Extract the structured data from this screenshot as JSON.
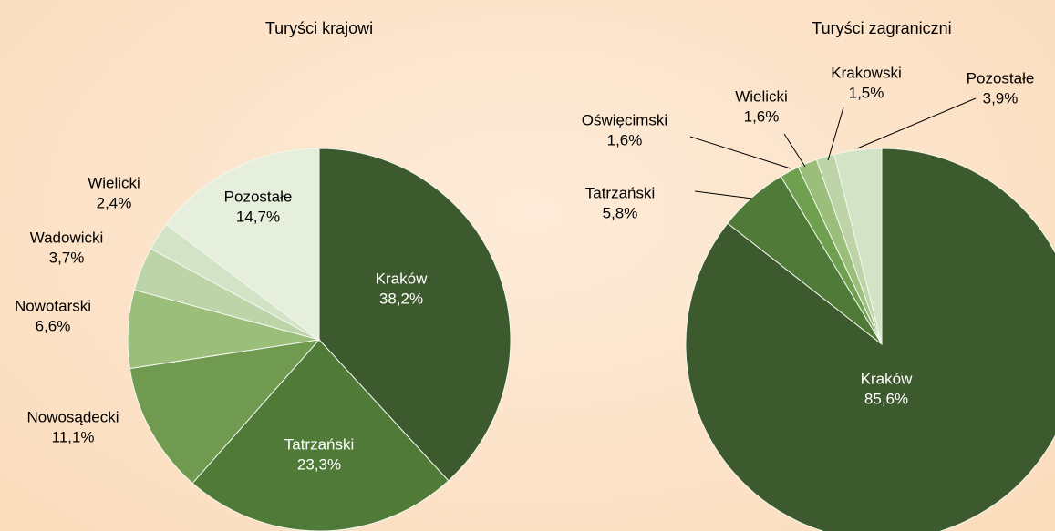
{
  "chart_data": [
    {
      "type": "pie",
      "title": "Turyści krajowi",
      "categories": [
        "Kraków",
        "Tatrzański",
        "Nowosądecki",
        "Nowotarski",
        "Wadowicki",
        "Wielicki",
        "Pozostałe"
      ],
      "values": [
        38.2,
        23.3,
        11.1,
        6.6,
        3.7,
        2.4,
        14.7
      ],
      "value_labels": [
        "38,2%",
        "23,3%",
        "11,1%",
        "6,6%",
        "3,7%",
        "2,4%",
        "14,7%"
      ],
      "colors": [
        "#3d5a2e",
        "#4f7a38",
        "#6f9a50",
        "#9bbf7a",
        "#bcd4a8",
        "#d3e3c6",
        "#e6efdc"
      ]
    },
    {
      "type": "pie",
      "title": "Turyści zagraniczni",
      "categories": [
        "Kraków",
        "Tatrzański",
        "Oświęcimski",
        "Wielicki",
        "Krakowski",
        "Pozostałe"
      ],
      "values": [
        85.6,
        5.8,
        1.6,
        1.6,
        1.5,
        3.9
      ],
      "value_labels": [
        "85,6%",
        "5,8%",
        "1,6%",
        "1,6%",
        "1,5%",
        "3,9%"
      ],
      "colors": [
        "#3d5a2e",
        "#4f7a38",
        "#6fa050",
        "#9bbf7a",
        "#bcd4a8",
        "#d3e3c6"
      ]
    }
  ]
}
